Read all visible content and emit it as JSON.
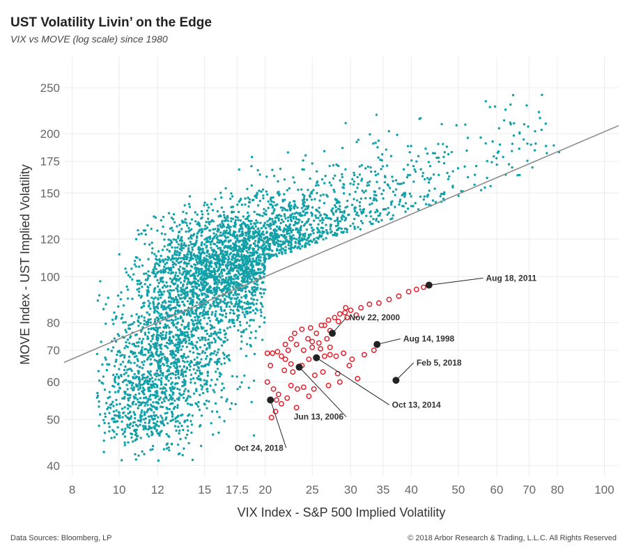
{
  "title": "UST Volatility Livin’ on the Edge",
  "subtitle": "VIX vs MOVE (log scale) since 1980",
  "footer": {
    "source": "Data Sources: Bloomberg, LP",
    "copyright": "© 2018 Arbor Research & Trading, L.L.C. All Rights Reserved"
  },
  "chart_data": {
    "type": "scatter",
    "xlabel": "VIX Index - S&P 500 Implied Volatility",
    "ylabel": "MOVE Index - UST Implied Volatility",
    "x_scale": "log",
    "y_scale": "log",
    "xlim": [
      7.7,
      107
    ],
    "ylim": [
      38,
      290
    ],
    "x_ticks": [
      8,
      10,
      12,
      15,
      17.5,
      20,
      25,
      30,
      35,
      40,
      50,
      60,
      70,
      80,
      100
    ],
    "x_tick_labels": [
      "8",
      "10",
      "12",
      "15",
      "17.5",
      "20",
      "25",
      "30",
      "35",
      "40",
      "50",
      "60",
      "70",
      "80",
      "100"
    ],
    "y_ticks": [
      40,
      50,
      60,
      70,
      80,
      100,
      120,
      150,
      175,
      200,
      250
    ],
    "y_tick_labels": [
      "40",
      "50",
      "60",
      "70",
      "80",
      "100",
      "120",
      "150",
      "175",
      "200",
      "250"
    ],
    "grid": true,
    "colors": {
      "points": "#13a0a8",
      "edge_points": "#e0202c",
      "annotated": "#222222",
      "trend_line": "#8c8c8c",
      "grid": "#ececec"
    },
    "trend_line": {
      "x": [
        7.7,
        107
      ],
      "y": [
        66,
        208
      ]
    },
    "annotations": [
      {
        "label": "Aug 18, 2011",
        "x": 43.5,
        "y": 96,
        "label_x": 57,
        "label_y": 98,
        "anchor": "start"
      },
      {
        "label": "Nov 22, 2000",
        "x": 27.5,
        "y": 76,
        "label_x": 29.8,
        "label_y": 81,
        "anchor": "start"
      },
      {
        "label": "Aug 14, 1998",
        "x": 34,
        "y": 72,
        "label_x": 38.5,
        "label_y": 73,
        "anchor": "start"
      },
      {
        "label": "Feb 5, 2018",
        "x": 37.2,
        "y": 60.5,
        "label_x": 41,
        "label_y": 65,
        "anchor": "start"
      },
      {
        "label": "Oct 13, 2014",
        "x": 25.5,
        "y": 67.5,
        "label_x": 36.5,
        "label_y": 53,
        "anchor": "start"
      },
      {
        "label": "Jun 13, 2006",
        "x": 23.5,
        "y": 64.5,
        "label_x": 29,
        "label_y": 50,
        "anchor": "end"
      },
      {
        "label": "Oct 24, 2018",
        "x": 20.5,
        "y": 55,
        "label_x": 21.8,
        "label_y": 43,
        "anchor": "end"
      }
    ],
    "edge_points": [
      [
        20.2,
        69
      ],
      [
        20.7,
        69
      ],
      [
        21.2,
        69.5
      ],
      [
        21.6,
        68
      ],
      [
        20.5,
        65
      ],
      [
        20.2,
        60
      ],
      [
        20.8,
        58
      ],
      [
        21.3,
        56.5
      ],
      [
        21.0,
        52
      ],
      [
        20.6,
        50.5
      ],
      [
        22.0,
        72
      ],
      [
        22.6,
        74
      ],
      [
        23.2,
        72
      ],
      [
        22.3,
        70
      ],
      [
        22.0,
        67
      ],
      [
        22.6,
        65.5
      ],
      [
        21.9,
        63.5
      ],
      [
        22.8,
        63
      ],
      [
        23.8,
        65
      ],
      [
        24.6,
        67
      ],
      [
        25.6,
        67.5
      ],
      [
        26.5,
        68
      ],
      [
        27.2,
        68.5
      ],
      [
        28.0,
        68
      ],
      [
        29.0,
        69
      ],
      [
        30.2,
        67
      ],
      [
        32.0,
        68.5
      ],
      [
        24.0,
        70
      ],
      [
        25.0,
        71
      ],
      [
        24.5,
        74
      ],
      [
        25.5,
        76
      ],
      [
        26.5,
        79
      ],
      [
        27.0,
        81
      ],
      [
        27.8,
        82
      ],
      [
        28.5,
        83.5
      ],
      [
        29.2,
        84
      ],
      [
        30.0,
        85
      ],
      [
        31.5,
        86
      ],
      [
        32.8,
        87.5
      ],
      [
        34.3,
        88
      ],
      [
        36.0,
        89.5
      ],
      [
        37.7,
        91
      ],
      [
        39.5,
        93
      ],
      [
        41.0,
        94
      ],
      [
        42.4,
        95
      ],
      [
        22.6,
        59
      ],
      [
        23.3,
        58
      ],
      [
        24.0,
        58.5
      ],
      [
        25.2,
        58
      ],
      [
        27.0,
        59
      ],
      [
        28.5,
        60
      ],
      [
        31.0,
        61
      ],
      [
        25.3,
        62
      ],
      [
        26.3,
        63
      ],
      [
        28.2,
        62.5
      ],
      [
        29.8,
        65
      ],
      [
        23.0,
        76
      ],
      [
        23.8,
        77.5
      ],
      [
        24.8,
        78
      ],
      [
        26.1,
        79
      ],
      [
        27.2,
        77
      ],
      [
        28.3,
        80.5
      ],
      [
        29.5,
        82
      ],
      [
        26.8,
        74
      ],
      [
        25.8,
        72.5
      ],
      [
        27.2,
        71
      ],
      [
        22.2,
        55.5
      ],
      [
        21.6,
        54
      ],
      [
        23.2,
        53
      ],
      [
        24.6,
        56
      ],
      [
        21.1,
        55
      ],
      [
        25.0,
        73
      ],
      [
        29.3,
        86
      ],
      [
        30.8,
        83
      ],
      [
        33.5,
        70
      ],
      [
        26.0,
        70.5
      ]
    ]
  }
}
